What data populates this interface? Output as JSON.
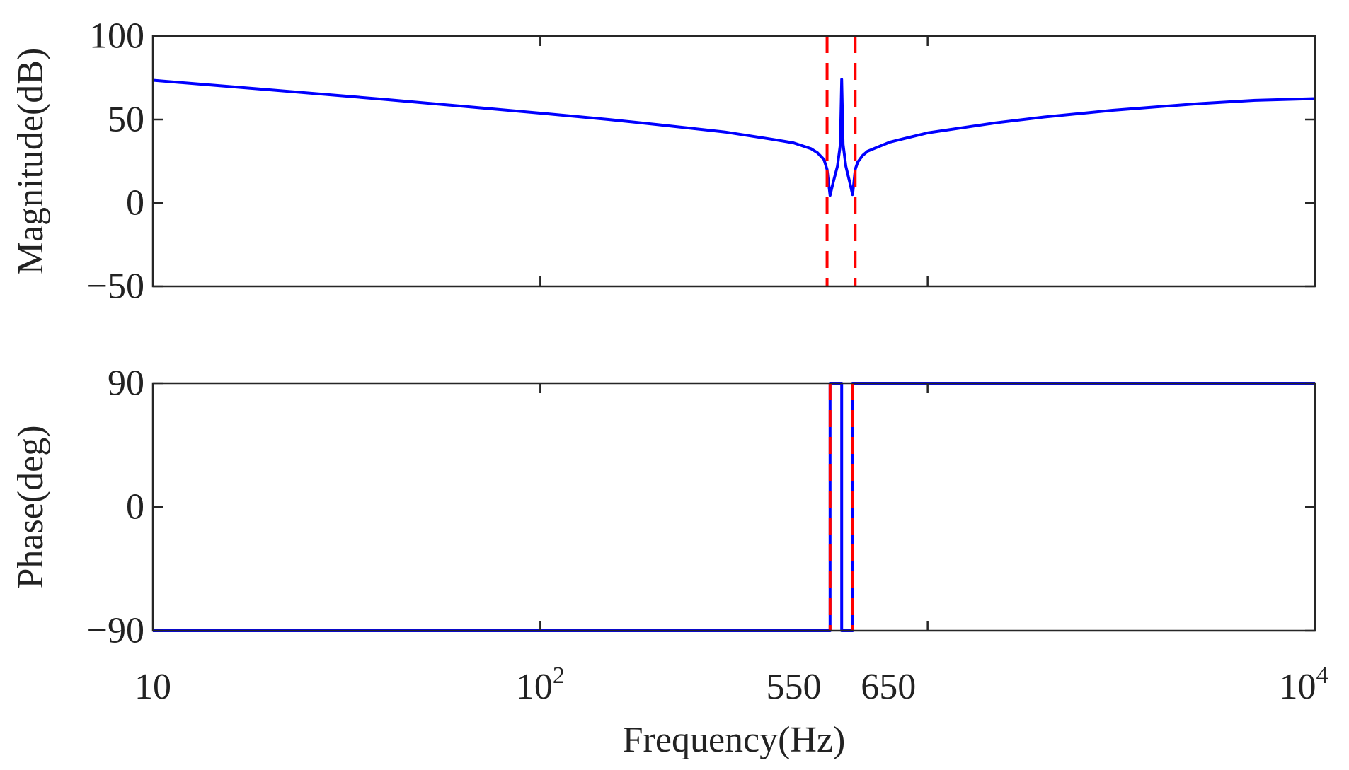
{
  "chart_data": [
    {
      "type": "line",
      "panel": "magnitude",
      "ylabel": "Magnitude(dB)",
      "xscale": "log",
      "xlim": [
        10,
        10000
      ],
      "ylim": [
        -50,
        100
      ],
      "yticks": [
        100,
        50,
        0,
        -50
      ],
      "ytick_labels": [
        "100",
        "50",
        "0",
        "−50"
      ],
      "grid": false,
      "series": [
        {
          "color": "#0000ff",
          "style": "solid",
          "x": [
            10,
            20,
            40,
            70,
            100,
            150,
            200,
            300,
            400,
            450,
            500,
            520,
            540,
            550,
            555,
            560,
            570,
            585,
            595,
            600,
            605,
            615,
            630,
            640,
            645,
            650,
            660,
            680,
            700,
            800,
            1000,
            1500,
            2000,
            3000,
            5000,
            7000,
            10000
          ],
          "y": [
            73.5,
            67.8,
            62.0,
            57.0,
            53.8,
            50.0,
            47.0,
            42.5,
            38.0,
            36.0,
            32.5,
            30.0,
            26.0,
            20.0,
            12.0,
            4.5,
            12.0,
            22.0,
            35.0,
            74.0,
            35.0,
            22.0,
            12.0,
            5.0,
            12.0,
            20.0,
            24.5,
            28.5,
            31.0,
            36.5,
            42.0,
            48.0,
            51.5,
            55.5,
            59.5,
            61.5,
            62.5
          ]
        }
      ],
      "markers": [
        {
          "x": 550,
          "color": "#ff0000",
          "style": "dashed"
        },
        {
          "x": 650,
          "color": "#ff0000",
          "style": "dashed"
        }
      ]
    },
    {
      "type": "line",
      "panel": "phase",
      "ylabel": "Phase(deg)",
      "xlabel": "Frequency(Hz)",
      "xscale": "log",
      "xlim": [
        10,
        10000
      ],
      "ylim": [
        -90,
        90
      ],
      "yticks": [
        90,
        0,
        -90
      ],
      "ytick_labels": [
        "90",
        "0",
        "−90"
      ],
      "xtick_labels": [
        {
          "x": 10,
          "base": "10",
          "sup": ""
        },
        {
          "x": 100,
          "base": "10",
          "sup": "2"
        },
        {
          "x": 550,
          "base": "550",
          "sup": ""
        },
        {
          "x": 650,
          "base": "650",
          "sup": ""
        },
        {
          "x": 10000,
          "base": "10",
          "sup": "4"
        }
      ],
      "grid": false,
      "series": [
        {
          "color": "#0000ff",
          "style": "solid",
          "x": [
            10,
            560,
            560,
            600,
            600,
            640,
            640,
            10000
          ],
          "y": [
            -90,
            -90,
            90,
            90,
            -90,
            -90,
            90,
            90
          ]
        }
      ],
      "markers": [
        {
          "x": 560,
          "color": "#ff0000",
          "style": "dashed"
        },
        {
          "x": 640,
          "color": "#ff0000",
          "style": "dashed"
        }
      ]
    }
  ]
}
